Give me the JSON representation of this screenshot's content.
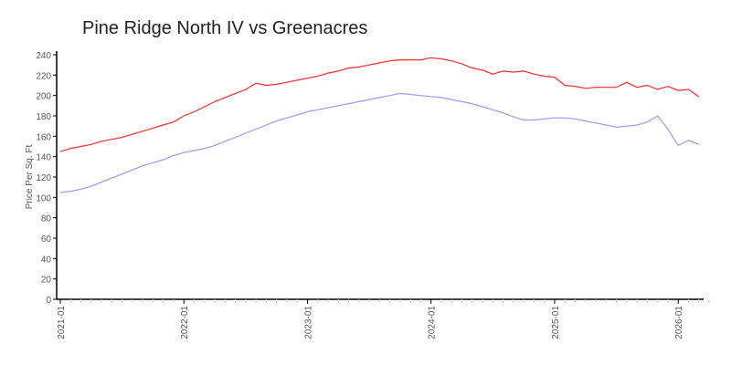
{
  "chart_data": {
    "type": "line",
    "title": "Pine Ridge North IV vs Greenacres",
    "xlabel": "",
    "ylabel": "Price Per Sq. Ft",
    "ylim": [
      0,
      240
    ],
    "yticks": [
      "0",
      "20",
      "40",
      "60",
      "80",
      "100",
      "120",
      "140",
      "160",
      "180",
      "200",
      "220",
      "240"
    ],
    "xticks": [
      "2021-01",
      "2022-01",
      "2023-01",
      "2024-01",
      "2025-01",
      "2026-01"
    ],
    "x_start": "2021-01",
    "x_interval": "monthly",
    "grid": false,
    "series": [
      {
        "name": "Pine Ridge North IV",
        "color": "#ff2a2a",
        "values": [
          145,
          148,
          150,
          152,
          155,
          157,
          159,
          162,
          165,
          168,
          171,
          174,
          180,
          184,
          189,
          194,
          198,
          202,
          206,
          212,
          210,
          211,
          213,
          215,
          217,
          219,
          222,
          224,
          227,
          228,
          230,
          232,
          234,
          235,
          235,
          235,
          237,
          236,
          234,
          231,
          227,
          225,
          221,
          224,
          223,
          224,
          221,
          219,
          218,
          210,
          209,
          207,
          208,
          208,
          208,
          213,
          208,
          210,
          206,
          209,
          205,
          206,
          199
        ]
      },
      {
        "name": "Greenacres",
        "color": "#9999ff",
        "values": [
          105,
          106,
          108,
          111,
          115,
          119,
          123,
          127,
          131,
          134,
          137,
          141,
          144,
          146,
          148,
          151,
          155,
          159,
          163,
          167,
          171,
          175,
          178,
          181,
          184,
          186,
          188,
          190,
          192,
          194,
          196,
          198,
          200,
          202,
          201,
          200,
          199,
          198,
          196,
          194,
          192,
          189,
          186,
          183,
          179,
          176,
          176,
          177,
          178,
          178,
          177,
          175,
          173,
          171,
          169,
          170,
          171,
          174,
          180,
          167,
          151,
          156,
          152
        ]
      }
    ]
  }
}
